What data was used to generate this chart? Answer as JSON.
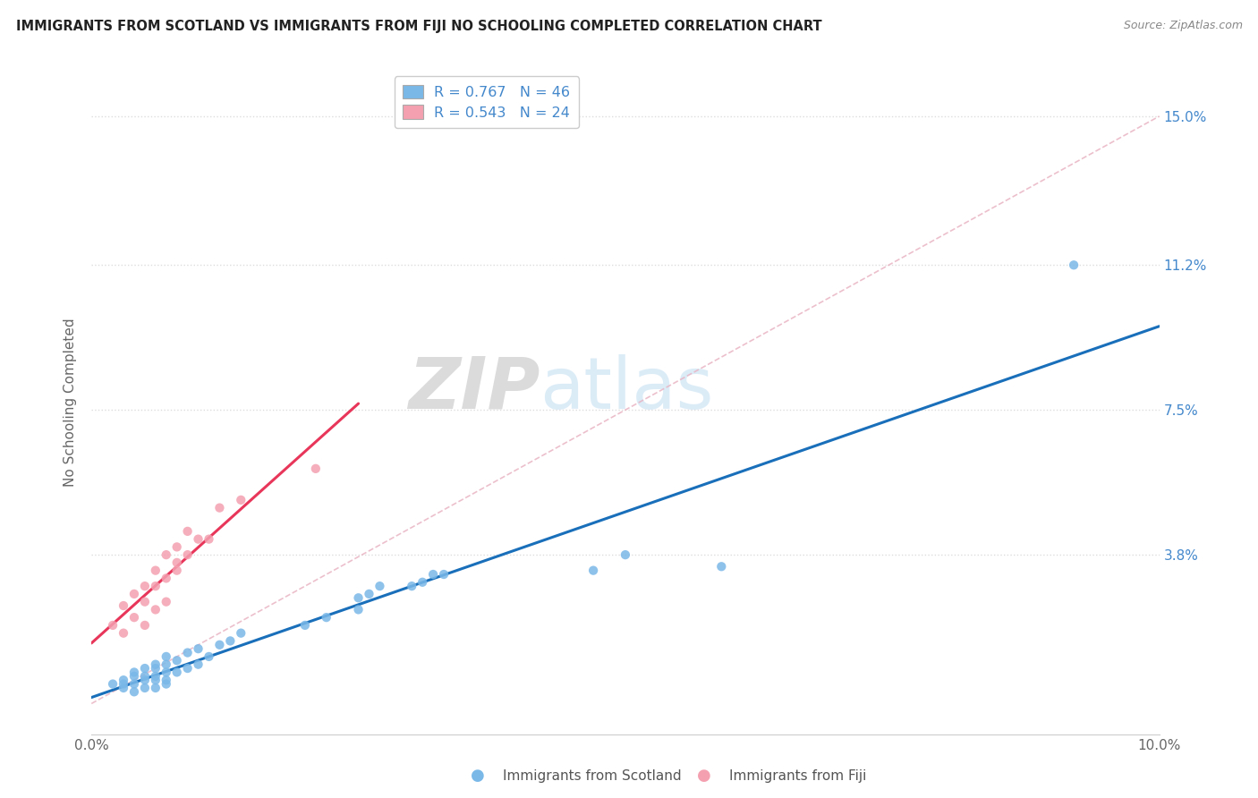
{
  "title": "IMMIGRANTS FROM SCOTLAND VS IMMIGRANTS FROM FIJI NO SCHOOLING COMPLETED CORRELATION CHART",
  "source": "Source: ZipAtlas.com",
  "ylabel": "No Schooling Completed",
  "xlim": [
    0.0,
    0.1
  ],
  "ylim": [
    -0.008,
    0.162
  ],
  "legend1_label": "R = 0.767   N = 46",
  "legend2_label": "R = 0.543   N = 24",
  "color_scotland": "#7ab8e8",
  "color_fiji": "#f4a0b0",
  "color_scotland_line": "#1a6fba",
  "color_fiji_line": "#e8365a",
  "color_diag": "#e8b0c0",
  "watermark_color": "#cde4f5",
  "background_color": "#ffffff",
  "grid_color": "#dddddd",
  "scotland_x": [
    0.002,
    0.003,
    0.003,
    0.003,
    0.004,
    0.004,
    0.004,
    0.004,
    0.005,
    0.005,
    0.005,
    0.005,
    0.006,
    0.006,
    0.006,
    0.006,
    0.006,
    0.007,
    0.007,
    0.007,
    0.007,
    0.007,
    0.008,
    0.008,
    0.009,
    0.009,
    0.01,
    0.01,
    0.011,
    0.012,
    0.013,
    0.014,
    0.02,
    0.022,
    0.025,
    0.025,
    0.026,
    0.027,
    0.03,
    0.031,
    0.032,
    0.033,
    0.047,
    0.05,
    0.059,
    0.092
  ],
  "scotland_y": [
    0.005,
    0.004,
    0.005,
    0.006,
    0.003,
    0.005,
    0.007,
    0.008,
    0.004,
    0.006,
    0.007,
    0.009,
    0.004,
    0.006,
    0.007,
    0.009,
    0.01,
    0.005,
    0.006,
    0.008,
    0.01,
    0.012,
    0.008,
    0.011,
    0.009,
    0.013,
    0.01,
    0.014,
    0.012,
    0.015,
    0.016,
    0.018,
    0.02,
    0.022,
    0.024,
    0.027,
    0.028,
    0.03,
    0.03,
    0.031,
    0.033,
    0.033,
    0.034,
    0.038,
    0.035,
    0.112
  ],
  "fiji_x": [
    0.002,
    0.003,
    0.003,
    0.004,
    0.004,
    0.005,
    0.005,
    0.005,
    0.006,
    0.006,
    0.006,
    0.007,
    0.007,
    0.007,
    0.008,
    0.008,
    0.008,
    0.009,
    0.009,
    0.01,
    0.011,
    0.012,
    0.014,
    0.021
  ],
  "fiji_y": [
    0.02,
    0.018,
    0.025,
    0.022,
    0.028,
    0.02,
    0.026,
    0.03,
    0.024,
    0.03,
    0.034,
    0.026,
    0.032,
    0.038,
    0.034,
    0.036,
    0.04,
    0.038,
    0.044,
    0.042,
    0.042,
    0.05,
    0.052,
    0.06
  ],
  "ytick_positions": [
    0.038,
    0.075,
    0.112,
    0.15
  ],
  "ytick_labels": [
    "3.8%",
    "7.5%",
    "11.2%",
    "15.0%"
  ],
  "xtick_positions": [
    0.0,
    0.1
  ],
  "xtick_labels": [
    "0.0%",
    "10.0%"
  ]
}
